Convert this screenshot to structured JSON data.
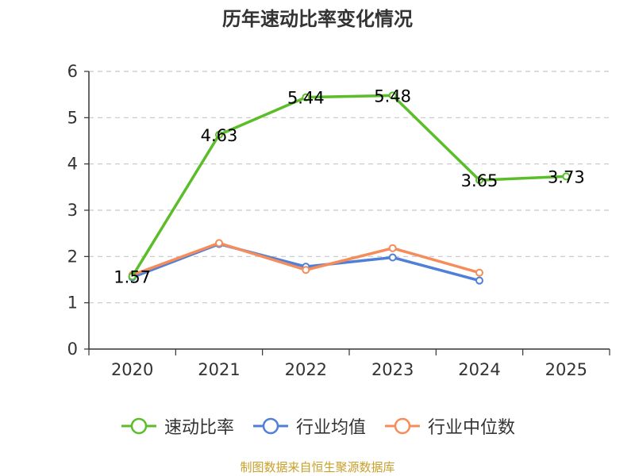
{
  "chart_data": {
    "type": "line",
    "title": "历年速动比率变化情况",
    "categories": [
      "2020",
      "2021",
      "2022",
      "2023",
      "2024",
      "2025"
    ],
    "ylim": [
      0,
      6
    ],
    "yticks": [
      0,
      1,
      2,
      3,
      4,
      5,
      6
    ],
    "grid": true,
    "legend_position": "bottom",
    "series": [
      {
        "name": "速动比率",
        "color": "#5cbd2a",
        "values": [
          1.57,
          4.63,
          5.44,
          5.48,
          3.65,
          3.73
        ],
        "labels": [
          "1.57",
          "4.63",
          "5.44",
          "5.48",
          "3.65",
          "3.73"
        ]
      },
      {
        "name": "行业均值",
        "color": "#4f7fd9",
        "values": [
          1.55,
          2.27,
          1.78,
          1.98,
          1.48,
          null
        ]
      },
      {
        "name": "行业中位数",
        "color": "#f58c5a",
        "values": [
          1.6,
          2.29,
          1.71,
          2.18,
          1.65,
          null
        ]
      }
    ]
  },
  "footer": {
    "source": "制图数据来自恒生聚源数据库"
  }
}
